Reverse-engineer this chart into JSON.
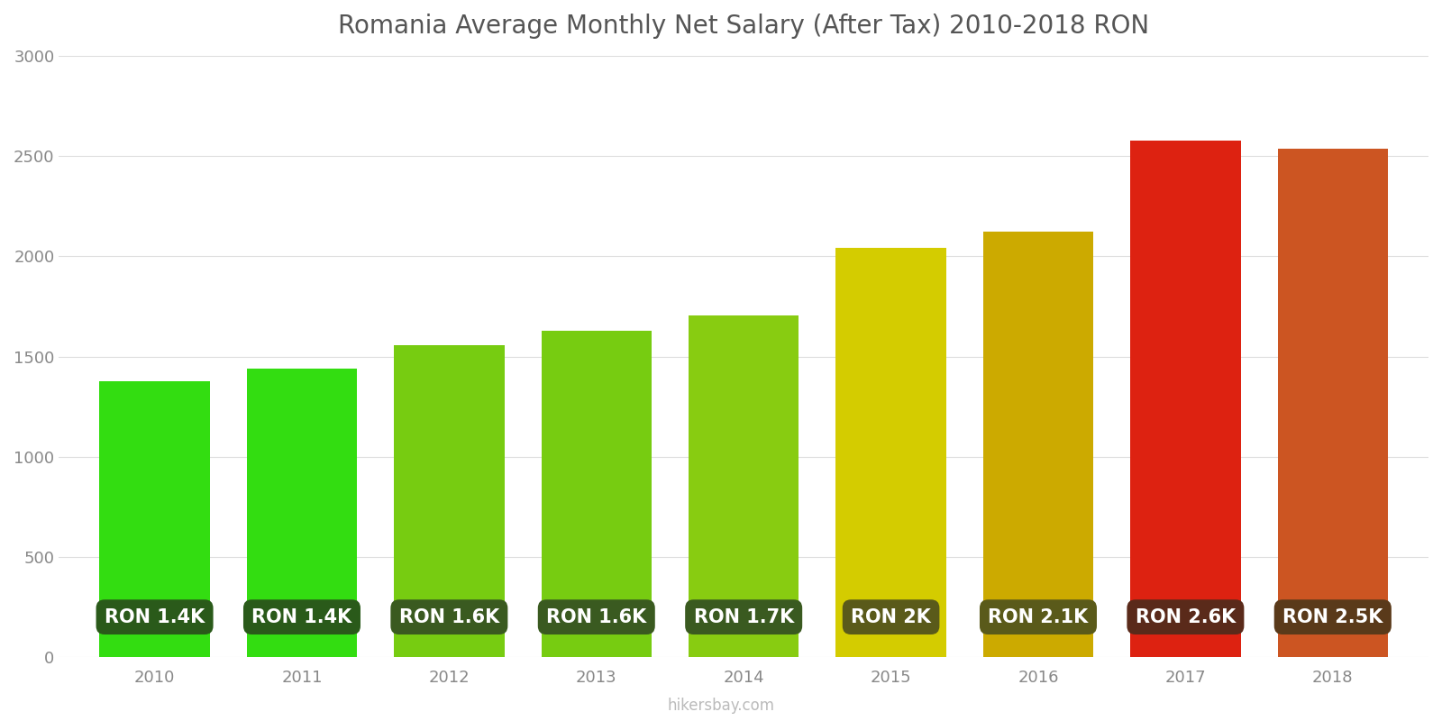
{
  "title": "Romania Average Monthly Net Salary (After Tax) 2010-2018 RON",
  "years": [
    2010,
    2011,
    2012,
    2013,
    2014,
    2015,
    2016,
    2017,
    2018
  ],
  "values": [
    1376,
    1441,
    1557,
    1630,
    1703,
    2041,
    2122,
    2577,
    2536
  ],
  "labels": [
    "RON 1.4K",
    "RON 1.4K",
    "RON 1.6K",
    "RON 1.6K",
    "RON 1.7K",
    "RON 2K",
    "RON 2.1K",
    "RON 2.6K",
    "RON 2.5K"
  ],
  "bar_colors": [
    "#33dd11",
    "#33dd11",
    "#77cc11",
    "#77cc11",
    "#88cc11",
    "#d4cc00",
    "#ccaa00",
    "#dd2211",
    "#cc5522"
  ],
  "label_box_colors": [
    "#2a5a1a",
    "#2a5a1a",
    "#3a5a20",
    "#3a5a20",
    "#3a5a20",
    "#5a5a1a",
    "#5a5a1a",
    "#5a2a1a",
    "#5a3a1a"
  ],
  "ylim": [
    0,
    3000
  ],
  "yticks": [
    0,
    500,
    1000,
    1500,
    2000,
    2500,
    3000
  ],
  "background_color": "#ffffff",
  "grid_color": "#dddddd",
  "label_text_color": "#ffffff",
  "title_fontsize": 20,
  "tick_fontsize": 13,
  "label_fontsize": 15,
  "watermark": "hikersbay.com",
  "bar_width": 0.75
}
